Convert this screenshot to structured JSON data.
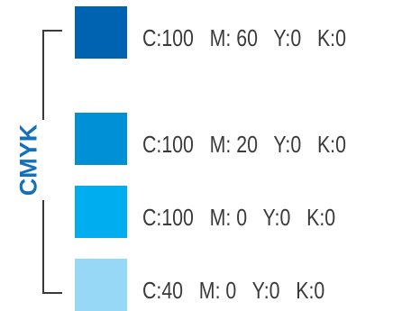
{
  "title": "CMYK",
  "colors": {
    "accent": "#1470b8",
    "bracket": "#3a3a3a"
  },
  "swatches": [
    {
      "label": "C:100   M: 60   Y:0   K:0",
      "color": "#0063b1"
    },
    {
      "label": "C:100   M: 20   Y:0   K:0",
      "color": "#0090d6"
    },
    {
      "label": "C:100   M: 0   Y:0   K:0",
      "color": "#00adee"
    },
    {
      "label": "C:40   M: 0   Y:0   K:0",
      "color": "#96d8f6"
    }
  ]
}
